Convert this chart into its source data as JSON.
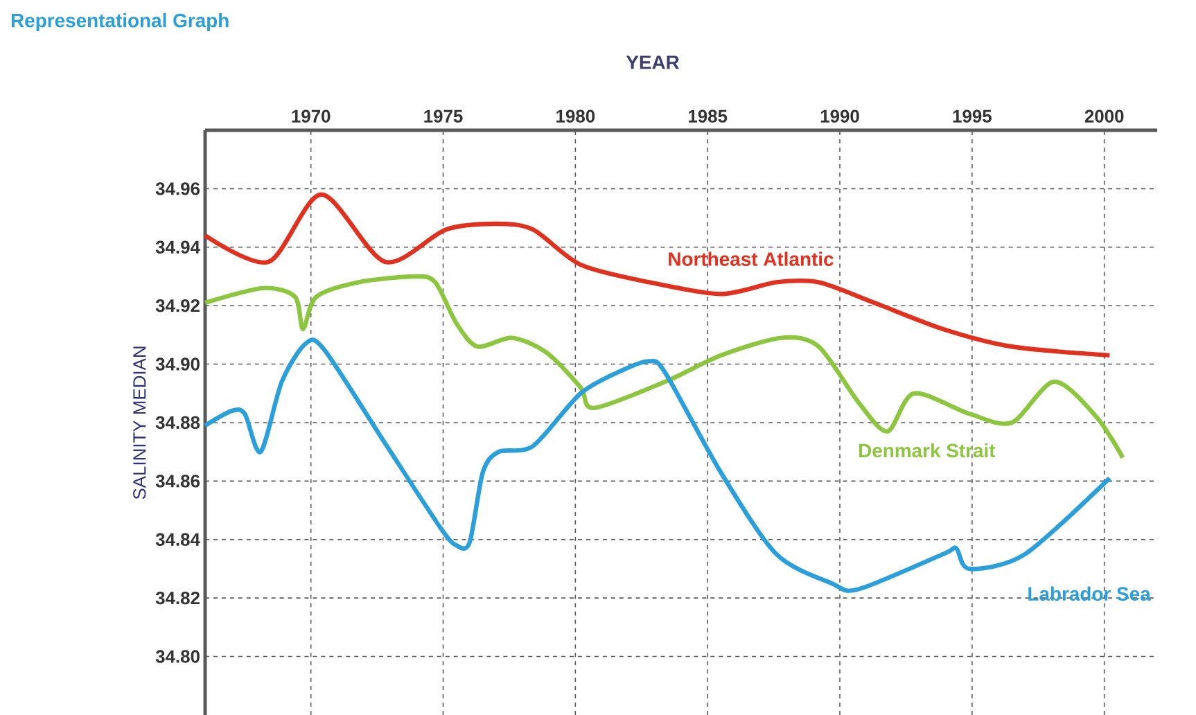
{
  "chart_data": {
    "type": "line",
    "title": "Representational Graph",
    "xlabel": "YEAR",
    "ylabel": "SALINITY MEDIAN",
    "xlim": [
      1966,
      2002
    ],
    "ylim": [
      34.78,
      34.98
    ],
    "xticks": [
      1970,
      1975,
      1980,
      1985,
      1990,
      1995,
      2000
    ],
    "yticks": [
      {
        "value": 34.8,
        "label": "34.80"
      },
      {
        "value": 34.82,
        "label": "34.82"
      },
      {
        "value": 34.84,
        "label": "34.84"
      },
      {
        "value": 34.86,
        "label": "34.86"
      },
      {
        "value": 34.88,
        "label": "34.88"
      },
      {
        "value": 34.9,
        "label": "34.90"
      },
      {
        "value": 34.92,
        "label": "34.92"
      },
      {
        "value": 34.94,
        "label": "34.94"
      },
      {
        "value": 34.96,
        "label": "34.96"
      }
    ],
    "grid": true,
    "legend": false,
    "series": [
      {
        "name": "Northeast Atlantic",
        "color": "#e0301e",
        "x": [
          1966,
          1968.4,
          1970.4,
          1972.8,
          1975.1,
          1977,
          1978.4,
          1980.2,
          1982.8,
          1985.5,
          1987.6,
          1989.2,
          1991.3,
          1993.9,
          1996.5,
          2000.2
        ],
        "values": [
          34.944,
          34.935,
          34.958,
          34.935,
          34.946,
          34.948,
          34.946,
          34.934,
          34.928,
          34.924,
          34.928,
          34.928,
          34.921,
          34.912,
          34.906,
          34.903
        ]
      },
      {
        "name": "Denmark Strait",
        "color": "#8cc63f",
        "x": [
          1966,
          1968.2,
          1969.4,
          1969.7,
          1970.2,
          1971.8,
          1973.9,
          1974.7,
          1975.5,
          1976.3,
          1977.6,
          1978.9,
          1980.2,
          1980.7,
          1983.4,
          1985.5,
          1987.8,
          1989.2,
          1990.7,
          1991.8,
          1992.8,
          1994.9,
          1996.5,
          1998.1,
          1999.7,
          2000.7
        ],
        "values": [
          34.921,
          34.926,
          34.923,
          34.912,
          34.923,
          34.928,
          34.93,
          34.928,
          34.914,
          34.906,
          34.909,
          34.904,
          34.892,
          34.885,
          34.894,
          34.903,
          34.909,
          34.906,
          34.887,
          34.877,
          34.89,
          34.883,
          34.88,
          34.894,
          34.882,
          34.868
        ]
      },
      {
        "name": "Labrador Sea",
        "color": "#2b9fd9",
        "x": [
          1966,
          1967,
          1967.5,
          1968.1,
          1968.9,
          1969.8,
          1970.5,
          1972.8,
          1974.9,
          1975.5,
          1976,
          1976.5,
          1977.1,
          1978.4,
          1980.2,
          1981.8,
          1982.8,
          1983.4,
          1985.5,
          1987.6,
          1989.7,
          1990.7,
          1993.9,
          1994.4,
          1994.9,
          1997,
          2000.2
        ],
        "values": [
          34.879,
          34.884,
          34.883,
          34.87,
          34.894,
          34.907,
          34.905,
          34.873,
          34.844,
          34.838,
          34.839,
          34.863,
          34.87,
          34.872,
          34.89,
          34.898,
          34.901,
          34.897,
          34.863,
          34.835,
          34.825,
          34.823,
          34.835,
          34.837,
          34.83,
          34.835,
          34.861
        ]
      }
    ]
  }
}
